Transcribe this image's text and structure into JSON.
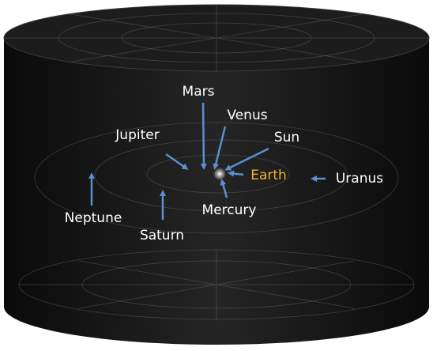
{
  "labels": [
    "Mars",
    "Venus",
    "Sun",
    "Jupiter",
    "Earth",
    "Uranus",
    "Neptune",
    "Mercury",
    "Saturn"
  ]
}
